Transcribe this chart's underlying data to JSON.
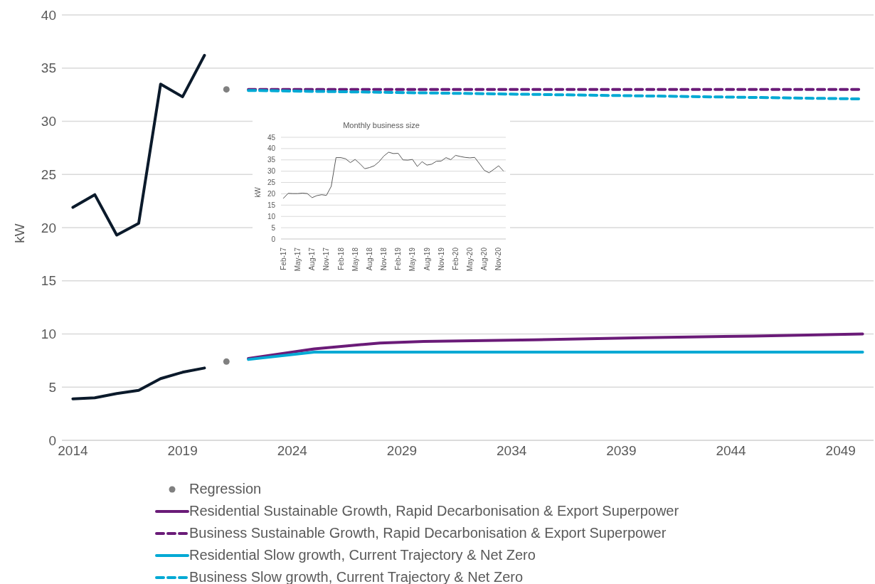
{
  "chart_data": [
    {
      "type": "line",
      "ylabel": "kW",
      "xlim": [
        2013.5,
        2050.5
      ],
      "xticks": [
        2014,
        2019,
        2024,
        2029,
        2034,
        2039,
        2044,
        2049
      ],
      "ylim": [
        0,
        40
      ],
      "yticks": [
        0,
        5,
        10,
        15,
        20,
        25,
        30,
        35,
        40
      ],
      "grid": "y",
      "legend": "bottom",
      "marker": "none",
      "series": [
        {
          "color": "#0b1a2b",
          "x": [
            2014,
            2015,
            2016,
            2017,
            2018,
            2019,
            2020
          ],
          "values": [
            21.9,
            23.1,
            19.3,
            20.4,
            33.5,
            32.3,
            36.2
          ]
        },
        {
          "color": "#0b1a2b",
          "x": [
            2014,
            2015,
            2016,
            2017,
            2018,
            2019,
            2020
          ],
          "values": [
            3.9,
            4.0,
            4.4,
            4.7,
            5.8,
            6.4,
            6.8
          ]
        },
        {
          "type": "scatter",
          "name": "Regression",
          "color": "#808080",
          "marker": "circle",
          "x": [
            2021,
            2021
          ],
          "values": [
            33.0,
            7.4
          ]
        },
        {
          "name": "Residential Sustainable Growth, Rapid Decarbonisation & Export Superpower",
          "color": "#6a1b78",
          "line_style": "solid",
          "x": [
            2022,
            2025,
            2028,
            2030,
            2035,
            2040,
            2045,
            2050
          ],
          "values": [
            7.7,
            8.6,
            9.15,
            9.3,
            9.45,
            9.65,
            9.8,
            10.0
          ]
        },
        {
          "name": "Business Sustainable Growth, Rapid Decarbonisation & Export Superpower",
          "color": "#6a1b78",
          "line_style": "dashed",
          "x": [
            2022,
            2050
          ],
          "values": [
            33.0,
            33.0
          ]
        },
        {
          "name": "Residential Slow growth, Current Trajectory & Net Zero",
          "color": "#00a9d4",
          "line_style": "solid",
          "x": [
            2022,
            2025,
            2050
          ],
          "values": [
            7.6,
            8.3,
            8.3
          ]
        },
        {
          "name": "Business Slow growth, Current Trajectory & Net Zero",
          "color": "#00a9d4",
          "line_style": "dashed",
          "x": [
            2022,
            2050
          ],
          "values": [
            32.9,
            32.1
          ]
        }
      ]
    },
    {
      "type": "line",
      "title": "Monthly business size",
      "ylabel": "kW",
      "ylim": [
        0,
        45
      ],
      "yticks": [
        0,
        5,
        10,
        15,
        20,
        25,
        30,
        35,
        40,
        45
      ],
      "grid": "y",
      "marker": "none",
      "categories": [
        "Feb-17",
        null,
        null,
        "May-17",
        null,
        null,
        "Aug-17",
        null,
        null,
        "Nov-17",
        null,
        null,
        "Feb-18",
        null,
        null,
        "May-18",
        null,
        null,
        "Aug-18",
        null,
        null,
        "Nov-18",
        null,
        null,
        "Feb-19",
        null,
        null,
        "May-19",
        null,
        null,
        "Aug-19",
        null,
        null,
        "Nov-19",
        null,
        null,
        "Feb-20",
        null,
        null,
        "May-20",
        null,
        null,
        "Aug-20",
        null,
        null,
        "Nov-20",
        null
      ],
      "series": [
        {
          "color": "#595959",
          "line_style": "solid",
          "values": [
            18,
            20.2,
            20.1,
            20.1,
            20.3,
            20.1,
            18.3,
            19.2,
            19.6,
            19.3,
            23.3,
            36,
            36,
            35.5,
            33.8,
            35.2,
            33.3,
            31.1,
            31.6,
            32.4,
            34.2,
            36.7,
            38.4,
            37.8,
            37.9,
            35,
            34.9,
            35.2,
            32.1,
            34.2,
            32.7,
            33.1,
            34.4,
            34.5,
            36,
            35.1,
            37,
            36.5,
            36.1,
            35.9,
            36.1,
            33.3,
            30.4,
            29.3,
            30.8,
            32.4,
            30.1
          ]
        }
      ]
    }
  ]
}
